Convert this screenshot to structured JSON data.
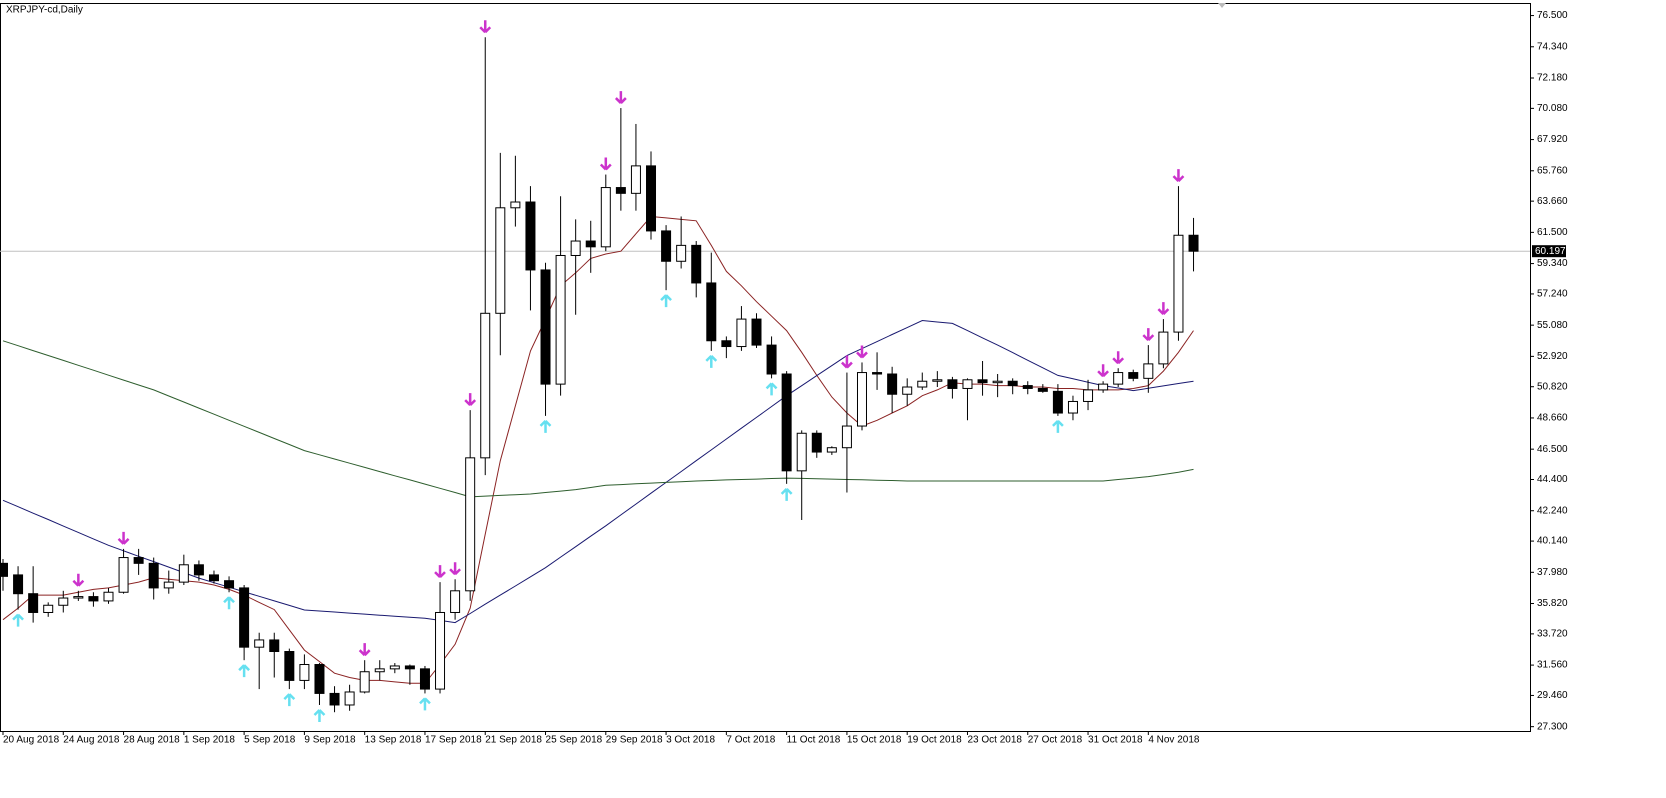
{
  "chart_data": {
    "type": "candlestick",
    "title": "XRPJPY-cd,Daily",
    "categories": [
      "20 Aug 2018",
      null,
      null,
      null,
      "24 Aug 2018",
      null,
      null,
      null,
      "28 Aug 2018",
      null,
      null,
      null,
      "1 Sep 2018",
      null,
      null,
      null,
      "5 Sep 2018",
      null,
      null,
      null,
      "9 Sep 2018",
      null,
      null,
      null,
      "13 Sep 2018",
      null,
      null,
      null,
      "17 Sep 2018",
      null,
      null,
      null,
      "21 Sep 2018",
      null,
      null,
      null,
      "25 Sep 2018",
      null,
      null,
      null,
      "29 Sep 2018",
      null,
      null,
      null,
      "3 Oct 2018",
      null,
      null,
      null,
      "7 Oct 2018",
      null,
      null,
      null,
      "11 Oct 2018",
      null,
      null,
      null,
      "15 Oct 2018",
      null,
      null,
      null,
      "19 Oct 2018",
      null,
      null,
      null,
      "23 Oct 2018",
      null,
      null,
      null,
      "27 Oct 2018",
      null,
      null,
      null,
      "31 Oct 2018",
      null,
      null,
      null,
      "4 Nov 2018",
      null,
      null,
      null
    ],
    "open": [
      38.6,
      37.8,
      36.5,
      35.2,
      35.7,
      36.2,
      36.3,
      36.0,
      36.6,
      39.0,
      38.6,
      36.9,
      37.3,
      38.5,
      37.8,
      37.4,
      36.9,
      32.8,
      33.3,
      32.5,
      30.5,
      31.6,
      29.6,
      28.8,
      29.7,
      31.1,
      31.3,
      31.5,
      31.3,
      29.9,
      35.2,
      36.7,
      45.9,
      55.9,
      63.2,
      63.6,
      58.9,
      51.0,
      59.9,
      60.9,
      60.5,
      64.6,
      64.2,
      66.1,
      61.6,
      59.5,
      60.6,
      58.0,
      54.0,
      53.6,
      55.5,
      53.7,
      51.7,
      45.0,
      47.6,
      46.3,
      46.6,
      48.1,
      51.8,
      51.7,
      50.3,
      50.8,
      51.2,
      51.3,
      50.7,
      51.3,
      51.1,
      51.2,
      50.9,
      50.7,
      50.5,
      49.0,
      49.8,
      50.6,
      51.0,
      51.8,
      51.4,
      52.4,
      54.6,
      61.3
    ],
    "high": [
      38.9,
      38.4,
      38.4,
      35.9,
      36.7,
      36.7,
      36.6,
      36.9,
      39.6,
      39.6,
      39.0,
      38.1,
      39.2,
      38.8,
      38.1,
      37.7,
      37.1,
      33.8,
      33.8,
      32.7,
      32.3,
      31.7,
      30.1,
      30.2,
      31.9,
      31.9,
      31.7,
      31.6,
      31.5,
      37.3,
      37.5,
      49.2,
      75.0,
      67.0,
      66.8,
      64.7,
      59.4,
      64.0,
      62.4,
      62.3,
      65.5,
      70.1,
      69.0,
      67.1,
      62.0,
      62.6,
      60.9,
      60.1,
      54.3,
      56.4,
      55.9,
      54.3,
      51.9,
      47.8,
      47.8,
      46.7,
      51.8,
      52.5,
      53.2,
      52.2,
      51.4,
      51.8,
      51.9,
      51.5,
      51.4,
      52.6,
      51.7,
      51.4,
      51.2,
      51.0,
      51.0,
      50.2,
      51.3,
      51.2,
      52.1,
      52.0,
      53.7,
      55.5,
      64.7,
      62.5
    ],
    "low": [
      36.7,
      35.4,
      34.5,
      34.9,
      35.2,
      36.0,
      35.6,
      35.8,
      36.5,
      37.8,
      36.1,
      36.5,
      37.1,
      37.4,
      37.2,
      36.6,
      31.9,
      29.9,
      30.7,
      29.9,
      29.9,
      28.8,
      28.3,
      28.4,
      29.6,
      30.5,
      31.0,
      30.2,
      29.6,
      29.6,
      34.7,
      36.0,
      44.7,
      53.0,
      61.9,
      56.1,
      48.8,
      50.2,
      55.8,
      58.7,
      60.2,
      63.0,
      63.0,
      61.0,
      57.5,
      59.0,
      57.0,
      53.3,
      52.8,
      53.3,
      53.5,
      51.4,
      44.1,
      41.6,
      45.9,
      46.1,
      43.5,
      47.8,
      50.6,
      49.0,
      49.5,
      50.6,
      50.8,
      50.0,
      48.5,
      50.2,
      50.1,
      50.3,
      50.3,
      50.4,
      48.8,
      48.5,
      49.2,
      50.4,
      50.8,
      51.2,
      50.4,
      52.1,
      54.0,
      58.8
    ],
    "close": [
      37.7,
      36.5,
      35.2,
      35.7,
      36.2,
      36.3,
      36.0,
      36.6,
      39.0,
      38.6,
      36.9,
      37.3,
      38.5,
      37.8,
      37.4,
      36.9,
      32.8,
      33.3,
      32.5,
      30.5,
      31.6,
      29.6,
      28.8,
      29.7,
      31.1,
      31.3,
      31.5,
      31.3,
      29.9,
      35.2,
      36.7,
      45.9,
      55.9,
      63.2,
      63.6,
      58.9,
      51.0,
      59.9,
      60.9,
      60.5,
      64.6,
      64.2,
      66.1,
      61.6,
      59.5,
      60.6,
      58.0,
      54.0,
      53.6,
      55.5,
      53.7,
      51.7,
      45.0,
      47.6,
      46.3,
      46.6,
      48.1,
      51.8,
      51.7,
      50.3,
      50.8,
      51.2,
      51.3,
      50.7,
      51.3,
      51.1,
      51.2,
      50.9,
      50.7,
      50.5,
      49.0,
      49.8,
      50.6,
      51.0,
      51.8,
      51.4,
      52.4,
      54.6,
      61.3,
      60.197
    ],
    "bull_color": "#ffffff",
    "bear_color": "#000000",
    "wick_color": "#000000",
    "series": [
      {
        "color": "#8b2323",
        "values": [
          34.7,
          35.5,
          36.4,
          36.4,
          36.4,
          36.6,
          36.8,
          36.9,
          37.1,
          37.3,
          37.6,
          37.5,
          37.4,
          37.3,
          37.1,
          36.8,
          36.4,
          35.9,
          35.4,
          34.0,
          32.6,
          31.8,
          31.0,
          30.7,
          30.5,
          30.5,
          30.4,
          30.3,
          30.3,
          31.6,
          33.0,
          35.5,
          40.6,
          45.7,
          49.5,
          53.3,
          55.5,
          57.8,
          58.7,
          59.7,
          60.0,
          60.2,
          61.4,
          62.6,
          62.5,
          62.4,
          62.3,
          60.6,
          58.8,
          57.8,
          56.7,
          55.7,
          54.7,
          53.2,
          51.6,
          50.1,
          49.0,
          48.1,
          48.5,
          49.0,
          49.5,
          50.2,
          50.6,
          51.1,
          51.0,
          51.0,
          50.9,
          50.9,
          50.8,
          50.8,
          50.7,
          50.7,
          50.6,
          50.6,
          50.6,
          50.7,
          50.9,
          51.9,
          53.2,
          54.7
        ]
      },
      {
        "color": "#191970",
        "values": [
          42.96,
          42.52,
          42.07,
          41.63,
          41.18,
          40.74,
          40.29,
          39.85,
          39.47,
          39.09,
          38.72,
          38.34,
          37.96,
          37.58,
          37.26,
          36.95,
          36.63,
          36.32,
          36.0,
          35.69,
          35.37,
          35.3,
          35.23,
          35.16,
          35.09,
          35.01,
          34.94,
          34.87,
          34.8,
          34.65,
          34.5,
          35.13,
          35.77,
          36.4,
          37.03,
          37.67,
          38.3,
          39.03,
          39.75,
          40.48,
          41.2,
          41.95,
          42.7,
          43.45,
          44.2,
          44.95,
          45.7,
          46.45,
          47.2,
          47.95,
          48.7,
          49.45,
          50.2,
          50.89,
          51.59,
          52.28,
          52.97,
          53.46,
          53.94,
          54.43,
          54.91,
          55.4,
          55.3,
          55.2,
          54.7,
          54.2,
          53.7,
          53.18,
          52.65,
          52.13,
          51.6,
          51.37,
          51.13,
          50.9,
          50.73,
          50.55,
          50.71,
          50.88,
          51.04,
          51.2
        ]
      },
      {
        "color": "#2e5e2e",
        "values": [
          54.0,
          53.66,
          53.32,
          52.98,
          52.64,
          52.3,
          51.96,
          51.62,
          51.28,
          50.94,
          50.6,
          50.18,
          49.76,
          49.34,
          48.92,
          48.5,
          48.08,
          47.66,
          47.24,
          46.82,
          46.4,
          46.11,
          45.82,
          45.53,
          45.24,
          44.95,
          44.66,
          44.37,
          44.08,
          43.79,
          43.5,
          43.2,
          43.25,
          43.3,
          43.35,
          43.4,
          43.5,
          43.6,
          43.7,
          43.85,
          44.0,
          44.05,
          44.1,
          44.15,
          44.2,
          44.25,
          44.3,
          44.33,
          44.37,
          44.4,
          44.43,
          44.47,
          44.5,
          44.48,
          44.45,
          44.43,
          44.4,
          44.38,
          44.35,
          44.33,
          44.3,
          44.3,
          44.3,
          44.3,
          44.3,
          44.3,
          44.3,
          44.3,
          44.3,
          44.3,
          44.3,
          44.3,
          44.3,
          44.3,
          44.4,
          44.5,
          44.6,
          44.75,
          44.9,
          45.1
        ]
      }
    ],
    "signals": [
      {
        "symbol": "down",
        "color": "#cc33cc",
        "values": [
          null,
          null,
          null,
          null,
          null,
          36.7,
          null,
          null,
          39.6,
          null,
          null,
          null,
          null,
          null,
          null,
          null,
          null,
          null,
          null,
          null,
          null,
          null,
          null,
          null,
          31.9,
          null,
          null,
          null,
          null,
          37.3,
          37.5,
          49.2,
          75.0,
          null,
          null,
          null,
          null,
          null,
          null,
          null,
          65.5,
          70.1,
          null,
          null,
          null,
          null,
          null,
          null,
          null,
          null,
          null,
          null,
          null,
          null,
          null,
          null,
          51.8,
          52.5,
          null,
          null,
          null,
          null,
          null,
          null,
          null,
          null,
          null,
          null,
          null,
          null,
          null,
          null,
          null,
          51.2,
          52.1,
          null,
          53.7,
          55.5,
          64.7,
          null
        ]
      },
      {
        "symbol": "up",
        "color": "#66e0f0",
        "values": [
          null,
          35.4,
          null,
          null,
          null,
          null,
          null,
          null,
          null,
          null,
          null,
          null,
          null,
          null,
          null,
          36.6,
          31.9,
          null,
          null,
          29.9,
          null,
          28.8,
          null,
          null,
          null,
          null,
          null,
          null,
          29.6,
          null,
          null,
          null,
          null,
          null,
          null,
          null,
          48.8,
          null,
          null,
          null,
          null,
          null,
          null,
          null,
          57.5,
          null,
          null,
          53.3,
          null,
          null,
          null,
          51.4,
          44.1,
          null,
          null,
          null,
          null,
          null,
          null,
          null,
          null,
          null,
          null,
          null,
          null,
          null,
          null,
          null,
          null,
          null,
          48.8,
          null,
          null,
          null,
          null,
          null,
          null,
          null,
          null,
          null
        ]
      }
    ],
    "last_price": 60.197,
    "ylim": [
      27.0,
      77.3
    ],
    "yticks": [
      {
        "value": 27.3,
        "label": "27.300"
      },
      {
        "value": 29.46,
        "label": "29.460"
      },
      {
        "value": 31.56,
        "label": "31.560"
      },
      {
        "value": 33.72,
        "label": "33.720"
      },
      {
        "value": 35.82,
        "label": "35.820"
      },
      {
        "value": 37.98,
        "label": "37.980"
      },
      {
        "value": 40.14,
        "label": "40.140"
      },
      {
        "value": 42.24,
        "label": "42.240"
      },
      {
        "value": 44.4,
        "label": "44.400"
      },
      {
        "value": 46.5,
        "label": "46.500"
      },
      {
        "value": 48.66,
        "label": "48.660"
      },
      {
        "value": 50.82,
        "label": "50.820"
      },
      {
        "value": 52.92,
        "label": "52.920"
      },
      {
        "value": 55.08,
        "label": "55.080"
      },
      {
        "value": 57.24,
        "label": "57.240"
      },
      {
        "value": 59.34,
        "label": "59.340"
      },
      {
        "value": 61.5,
        "label": "61.500"
      },
      {
        "value": 63.66,
        "label": "63.660"
      },
      {
        "value": 65.76,
        "label": "65.760"
      },
      {
        "value": 67.92,
        "label": "67.920"
      },
      {
        "value": 70.08,
        "label": "70.080"
      },
      {
        "value": 72.18,
        "label": "72.180"
      },
      {
        "value": 74.34,
        "label": "74.340"
      },
      {
        "value": 76.5,
        "label": "76.500"
      }
    ],
    "grid": false
  }
}
